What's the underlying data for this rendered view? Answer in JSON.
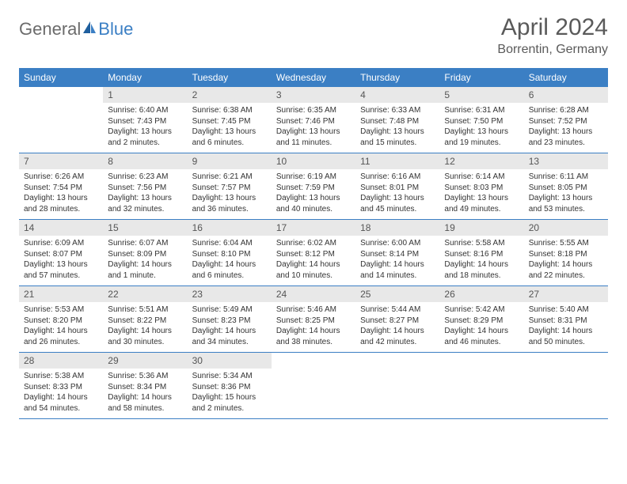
{
  "header": {
    "logo_general": "General",
    "logo_blue": "Blue",
    "month_title": "April 2024",
    "location": "Borrentin, Germany"
  },
  "colors": {
    "header_bar": "#3b7fc4",
    "header_text": "#ffffff",
    "daynum_bg": "#e8e8e8",
    "daynum_text": "#555555",
    "body_text": "#333333",
    "title_text": "#5a5a5a",
    "logo_gray": "#6b6b6b",
    "logo_blue": "#3b7fc4",
    "week_border": "#3b7fc4",
    "background": "#ffffff"
  },
  "typography": {
    "month_title_size": 30,
    "location_size": 16,
    "day_header_size": 12,
    "day_num_size": 12,
    "cell_text_size": 10,
    "font_family": "Arial"
  },
  "day_names": [
    "Sunday",
    "Monday",
    "Tuesday",
    "Wednesday",
    "Thursday",
    "Friday",
    "Saturday"
  ],
  "weeks": [
    [
      {
        "num": "",
        "lines": []
      },
      {
        "num": "1",
        "lines": [
          "Sunrise: 6:40 AM",
          "Sunset: 7:43 PM",
          "Daylight: 13 hours",
          "and 2 minutes."
        ]
      },
      {
        "num": "2",
        "lines": [
          "Sunrise: 6:38 AM",
          "Sunset: 7:45 PM",
          "Daylight: 13 hours",
          "and 6 minutes."
        ]
      },
      {
        "num": "3",
        "lines": [
          "Sunrise: 6:35 AM",
          "Sunset: 7:46 PM",
          "Daylight: 13 hours",
          "and 11 minutes."
        ]
      },
      {
        "num": "4",
        "lines": [
          "Sunrise: 6:33 AM",
          "Sunset: 7:48 PM",
          "Daylight: 13 hours",
          "and 15 minutes."
        ]
      },
      {
        "num": "5",
        "lines": [
          "Sunrise: 6:31 AM",
          "Sunset: 7:50 PM",
          "Daylight: 13 hours",
          "and 19 minutes."
        ]
      },
      {
        "num": "6",
        "lines": [
          "Sunrise: 6:28 AM",
          "Sunset: 7:52 PM",
          "Daylight: 13 hours",
          "and 23 minutes."
        ]
      }
    ],
    [
      {
        "num": "7",
        "lines": [
          "Sunrise: 6:26 AM",
          "Sunset: 7:54 PM",
          "Daylight: 13 hours",
          "and 28 minutes."
        ]
      },
      {
        "num": "8",
        "lines": [
          "Sunrise: 6:23 AM",
          "Sunset: 7:56 PM",
          "Daylight: 13 hours",
          "and 32 minutes."
        ]
      },
      {
        "num": "9",
        "lines": [
          "Sunrise: 6:21 AM",
          "Sunset: 7:57 PM",
          "Daylight: 13 hours",
          "and 36 minutes."
        ]
      },
      {
        "num": "10",
        "lines": [
          "Sunrise: 6:19 AM",
          "Sunset: 7:59 PM",
          "Daylight: 13 hours",
          "and 40 minutes."
        ]
      },
      {
        "num": "11",
        "lines": [
          "Sunrise: 6:16 AM",
          "Sunset: 8:01 PM",
          "Daylight: 13 hours",
          "and 45 minutes."
        ]
      },
      {
        "num": "12",
        "lines": [
          "Sunrise: 6:14 AM",
          "Sunset: 8:03 PM",
          "Daylight: 13 hours",
          "and 49 minutes."
        ]
      },
      {
        "num": "13",
        "lines": [
          "Sunrise: 6:11 AM",
          "Sunset: 8:05 PM",
          "Daylight: 13 hours",
          "and 53 minutes."
        ]
      }
    ],
    [
      {
        "num": "14",
        "lines": [
          "Sunrise: 6:09 AM",
          "Sunset: 8:07 PM",
          "Daylight: 13 hours",
          "and 57 minutes."
        ]
      },
      {
        "num": "15",
        "lines": [
          "Sunrise: 6:07 AM",
          "Sunset: 8:09 PM",
          "Daylight: 14 hours",
          "and 1 minute."
        ]
      },
      {
        "num": "16",
        "lines": [
          "Sunrise: 6:04 AM",
          "Sunset: 8:10 PM",
          "Daylight: 14 hours",
          "and 6 minutes."
        ]
      },
      {
        "num": "17",
        "lines": [
          "Sunrise: 6:02 AM",
          "Sunset: 8:12 PM",
          "Daylight: 14 hours",
          "and 10 minutes."
        ]
      },
      {
        "num": "18",
        "lines": [
          "Sunrise: 6:00 AM",
          "Sunset: 8:14 PM",
          "Daylight: 14 hours",
          "and 14 minutes."
        ]
      },
      {
        "num": "19",
        "lines": [
          "Sunrise: 5:58 AM",
          "Sunset: 8:16 PM",
          "Daylight: 14 hours",
          "and 18 minutes."
        ]
      },
      {
        "num": "20",
        "lines": [
          "Sunrise: 5:55 AM",
          "Sunset: 8:18 PM",
          "Daylight: 14 hours",
          "and 22 minutes."
        ]
      }
    ],
    [
      {
        "num": "21",
        "lines": [
          "Sunrise: 5:53 AM",
          "Sunset: 8:20 PM",
          "Daylight: 14 hours",
          "and 26 minutes."
        ]
      },
      {
        "num": "22",
        "lines": [
          "Sunrise: 5:51 AM",
          "Sunset: 8:22 PM",
          "Daylight: 14 hours",
          "and 30 minutes."
        ]
      },
      {
        "num": "23",
        "lines": [
          "Sunrise: 5:49 AM",
          "Sunset: 8:23 PM",
          "Daylight: 14 hours",
          "and 34 minutes."
        ]
      },
      {
        "num": "24",
        "lines": [
          "Sunrise: 5:46 AM",
          "Sunset: 8:25 PM",
          "Daylight: 14 hours",
          "and 38 minutes."
        ]
      },
      {
        "num": "25",
        "lines": [
          "Sunrise: 5:44 AM",
          "Sunset: 8:27 PM",
          "Daylight: 14 hours",
          "and 42 minutes."
        ]
      },
      {
        "num": "26",
        "lines": [
          "Sunrise: 5:42 AM",
          "Sunset: 8:29 PM",
          "Daylight: 14 hours",
          "and 46 minutes."
        ]
      },
      {
        "num": "27",
        "lines": [
          "Sunrise: 5:40 AM",
          "Sunset: 8:31 PM",
          "Daylight: 14 hours",
          "and 50 minutes."
        ]
      }
    ],
    [
      {
        "num": "28",
        "lines": [
          "Sunrise: 5:38 AM",
          "Sunset: 8:33 PM",
          "Daylight: 14 hours",
          "and 54 minutes."
        ]
      },
      {
        "num": "29",
        "lines": [
          "Sunrise: 5:36 AM",
          "Sunset: 8:34 PM",
          "Daylight: 14 hours",
          "and 58 minutes."
        ]
      },
      {
        "num": "30",
        "lines": [
          "Sunrise: 5:34 AM",
          "Sunset: 8:36 PM",
          "Daylight: 15 hours",
          "and 2 minutes."
        ]
      },
      {
        "num": "",
        "lines": []
      },
      {
        "num": "",
        "lines": []
      },
      {
        "num": "",
        "lines": []
      },
      {
        "num": "",
        "lines": []
      }
    ]
  ]
}
